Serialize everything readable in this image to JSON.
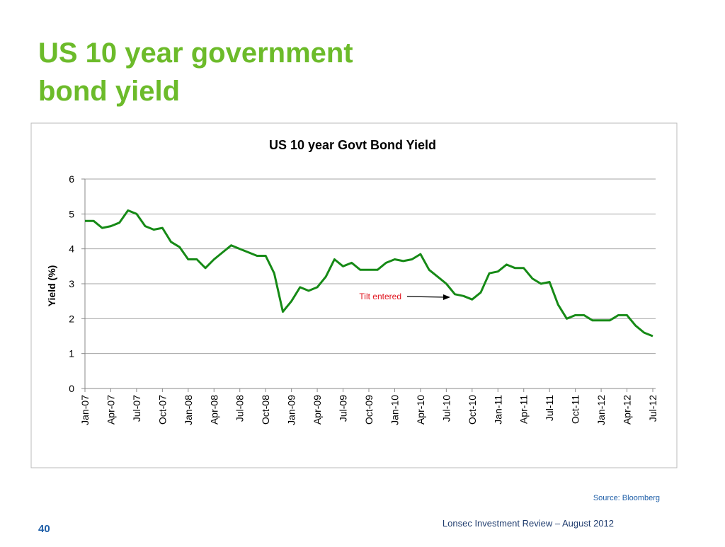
{
  "slide": {
    "title": [
      "US 10 year government",
      "bond yield"
    ],
    "source": "Source: Bloomberg",
    "footer": "Lonsec  Investment Review – August 2012",
    "page": "40"
  },
  "chart_data": {
    "type": "line",
    "title": "US 10 year Govt Bond Yield",
    "y_label": "Yield (%)",
    "categories": [
      "Jan-07",
      null,
      null,
      "Apr-07",
      null,
      null,
      "Jul-07",
      null,
      null,
      "Oct-07",
      null,
      null,
      "Jan-08",
      null,
      null,
      "Apr-08",
      null,
      null,
      "Jul-08",
      null,
      null,
      "Oct-08",
      null,
      null,
      "Jan-09",
      null,
      null,
      "Apr-09",
      null,
      null,
      "Jul-09",
      null,
      null,
      "Oct-09",
      null,
      null,
      "Jan-10",
      null,
      null,
      "Apr-10",
      null,
      null,
      "Jul-10",
      null,
      null,
      "Oct-10",
      null,
      null,
      "Jan-11",
      null,
      null,
      "Apr-11",
      null,
      null,
      "Jul-11",
      null,
      null,
      "Oct-11",
      null,
      null,
      "Jan-12",
      null,
      null,
      "Apr-12",
      null,
      null,
      "Jul-12"
    ],
    "values": [
      4.8,
      4.8,
      4.6,
      4.65,
      4.75,
      5.1,
      5.0,
      4.65,
      4.55,
      4.6,
      4.2,
      4.05,
      3.7,
      3.7,
      3.45,
      3.7,
      3.9,
      4.1,
      4.0,
      3.9,
      3.8,
      3.8,
      3.3,
      2.2,
      2.5,
      2.9,
      2.8,
      2.9,
      3.2,
      3.7,
      3.5,
      3.6,
      3.4,
      3.4,
      3.4,
      3.6,
      3.7,
      3.65,
      3.7,
      3.85,
      3.4,
      3.2,
      3.0,
      2.7,
      2.65,
      2.55,
      2.75,
      3.3,
      3.35,
      3.55,
      3.45,
      3.45,
      3.15,
      3.0,
      3.05,
      2.4,
      2.0,
      2.1,
      2.1,
      1.95,
      1.95,
      1.95,
      2.1,
      2.1,
      1.8,
      1.6,
      1.5
    ],
    "color": "#168a16",
    "ylim": [
      0,
      6
    ],
    "yticks": [
      0,
      1,
      2,
      3,
      4,
      5,
      6
    ],
    "grid": true,
    "annotation": "Tilt entered"
  }
}
